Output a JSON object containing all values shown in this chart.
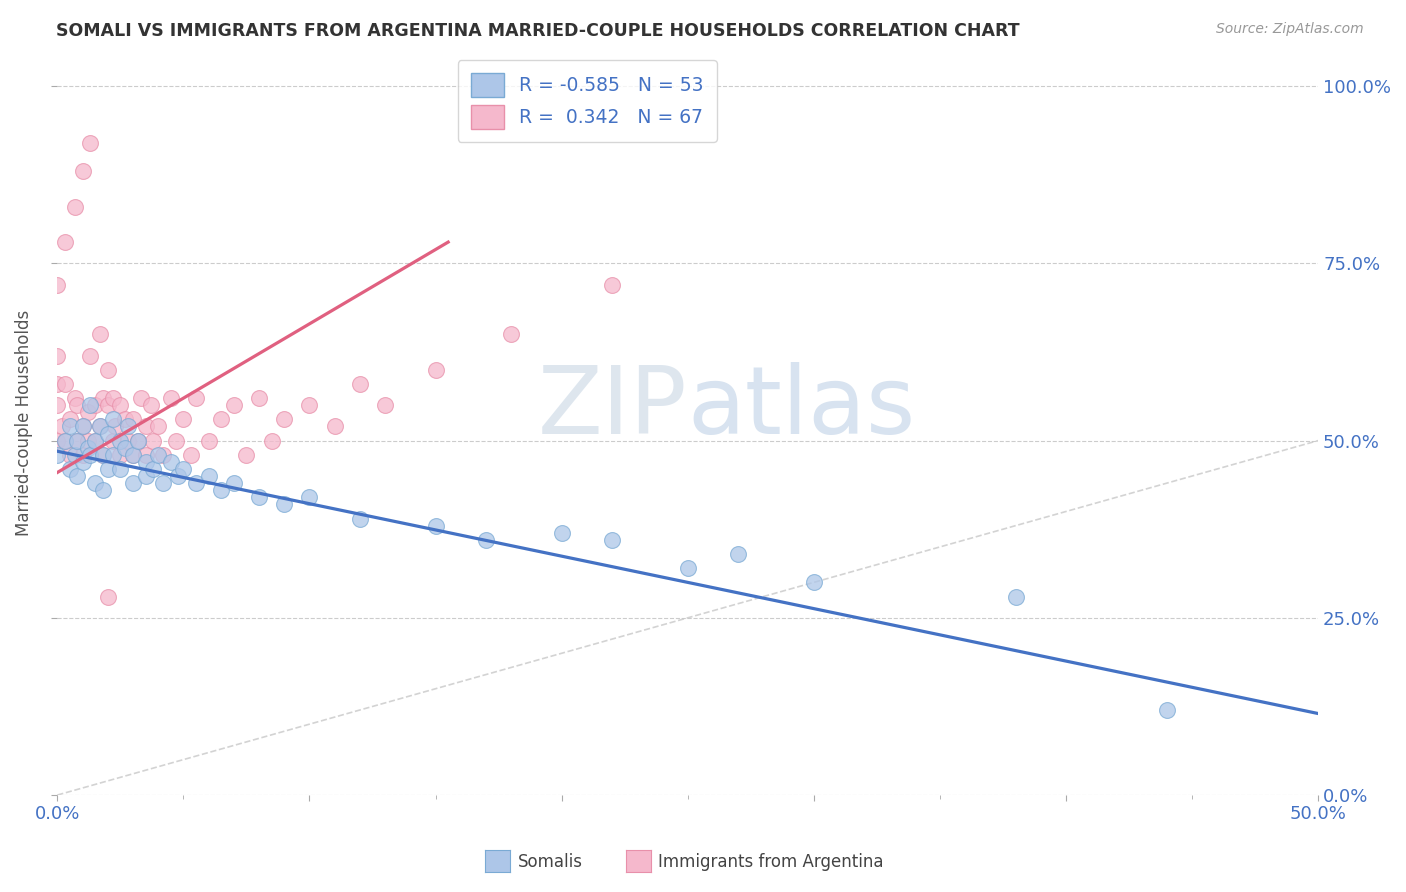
{
  "title": "SOMALI VS IMMIGRANTS FROM ARGENTINA MARRIED-COUPLE HOUSEHOLDS CORRELATION CHART",
  "source": "Source: ZipAtlas.com",
  "xlim": [
    0.0,
    0.5
  ],
  "ylim": [
    0.0,
    1.05
  ],
  "xlabel_ticks": [
    0.0,
    0.5
  ],
  "xlabel_labels": [
    "0.0%",
    "50.0%"
  ],
  "ylabel_ticks": [
    0.0,
    0.25,
    0.5,
    0.75,
    1.0
  ],
  "ylabel_labels": [
    "0.0%",
    "25.0%",
    "50.0%",
    "75.0%",
    "100.0%"
  ],
  "watermark1": "ZIP",
  "watermark2": "atlas",
  "legend_R_somali": "-0.585",
  "legend_N_somali": "53",
  "legend_R_argentina": "0.342",
  "legend_N_argentina": "67",
  "somali_color": "#adc6e8",
  "somali_edge": "#7aaad4",
  "argentina_color": "#f5b8cc",
  "argentina_edge": "#e890aa",
  "trend_somali_color": "#4472c4",
  "trend_argentina_color": "#e06080",
  "diagonal_color": "#c8c8c8",
  "somali_x": [
    0.0,
    0.003,
    0.005,
    0.005,
    0.007,
    0.008,
    0.008,
    0.01,
    0.01,
    0.012,
    0.013,
    0.013,
    0.015,
    0.015,
    0.017,
    0.018,
    0.018,
    0.02,
    0.02,
    0.022,
    0.022,
    0.025,
    0.025,
    0.027,
    0.028,
    0.03,
    0.03,
    0.032,
    0.035,
    0.035,
    0.038,
    0.04,
    0.042,
    0.045,
    0.048,
    0.05,
    0.055,
    0.06,
    0.065,
    0.07,
    0.08,
    0.09,
    0.1,
    0.12,
    0.15,
    0.17,
    0.2,
    0.22,
    0.25,
    0.27,
    0.3,
    0.38,
    0.44
  ],
  "somali_y": [
    0.48,
    0.5,
    0.46,
    0.52,
    0.48,
    0.5,
    0.45,
    0.52,
    0.47,
    0.49,
    0.55,
    0.48,
    0.5,
    0.44,
    0.52,
    0.48,
    0.43,
    0.51,
    0.46,
    0.53,
    0.48,
    0.5,
    0.46,
    0.49,
    0.52,
    0.48,
    0.44,
    0.5,
    0.47,
    0.45,
    0.46,
    0.48,
    0.44,
    0.47,
    0.45,
    0.46,
    0.44,
    0.45,
    0.43,
    0.44,
    0.42,
    0.41,
    0.42,
    0.39,
    0.38,
    0.36,
    0.37,
    0.36,
    0.32,
    0.34,
    0.3,
    0.28,
    0.12
  ],
  "argentina_x": [
    0.0,
    0.0,
    0.0,
    0.0,
    0.002,
    0.003,
    0.003,
    0.005,
    0.005,
    0.007,
    0.008,
    0.008,
    0.01,
    0.01,
    0.012,
    0.012,
    0.013,
    0.015,
    0.015,
    0.017,
    0.018,
    0.018,
    0.02,
    0.02,
    0.022,
    0.022,
    0.023,
    0.025,
    0.025,
    0.027,
    0.028,
    0.03,
    0.03,
    0.032,
    0.033,
    0.035,
    0.035,
    0.037,
    0.038,
    0.04,
    0.042,
    0.045,
    0.047,
    0.05,
    0.053,
    0.055,
    0.06,
    0.065,
    0.07,
    0.075,
    0.08,
    0.085,
    0.09,
    0.1,
    0.11,
    0.12,
    0.13,
    0.15,
    0.18,
    0.22,
    0.0,
    0.003,
    0.007,
    0.01,
    0.013,
    0.017,
    0.02
  ],
  "argentina_y": [
    0.5,
    0.55,
    0.58,
    0.62,
    0.52,
    0.5,
    0.58,
    0.53,
    0.48,
    0.56,
    0.5,
    0.55,
    0.52,
    0.48,
    0.54,
    0.5,
    0.62,
    0.5,
    0.55,
    0.52,
    0.56,
    0.48,
    0.55,
    0.6,
    0.5,
    0.56,
    0.52,
    0.55,
    0.48,
    0.53,
    0.5,
    0.48,
    0.53,
    0.5,
    0.56,
    0.52,
    0.48,
    0.55,
    0.5,
    0.52,
    0.48,
    0.56,
    0.5,
    0.53,
    0.48,
    0.56,
    0.5,
    0.53,
    0.55,
    0.48,
    0.56,
    0.5,
    0.53,
    0.55,
    0.52,
    0.58,
    0.55,
    0.6,
    0.65,
    0.72,
    0.72,
    0.78,
    0.83,
    0.88,
    0.92,
    0.65,
    0.28
  ],
  "trend_somali_x0": 0.0,
  "trend_somali_x1": 0.5,
  "trend_somali_y0": 0.485,
  "trend_somali_y1": 0.115,
  "trend_arg_x0": 0.0,
  "trend_arg_x1": 0.155,
  "trend_arg_y0": 0.455,
  "trend_arg_y1": 0.78
}
